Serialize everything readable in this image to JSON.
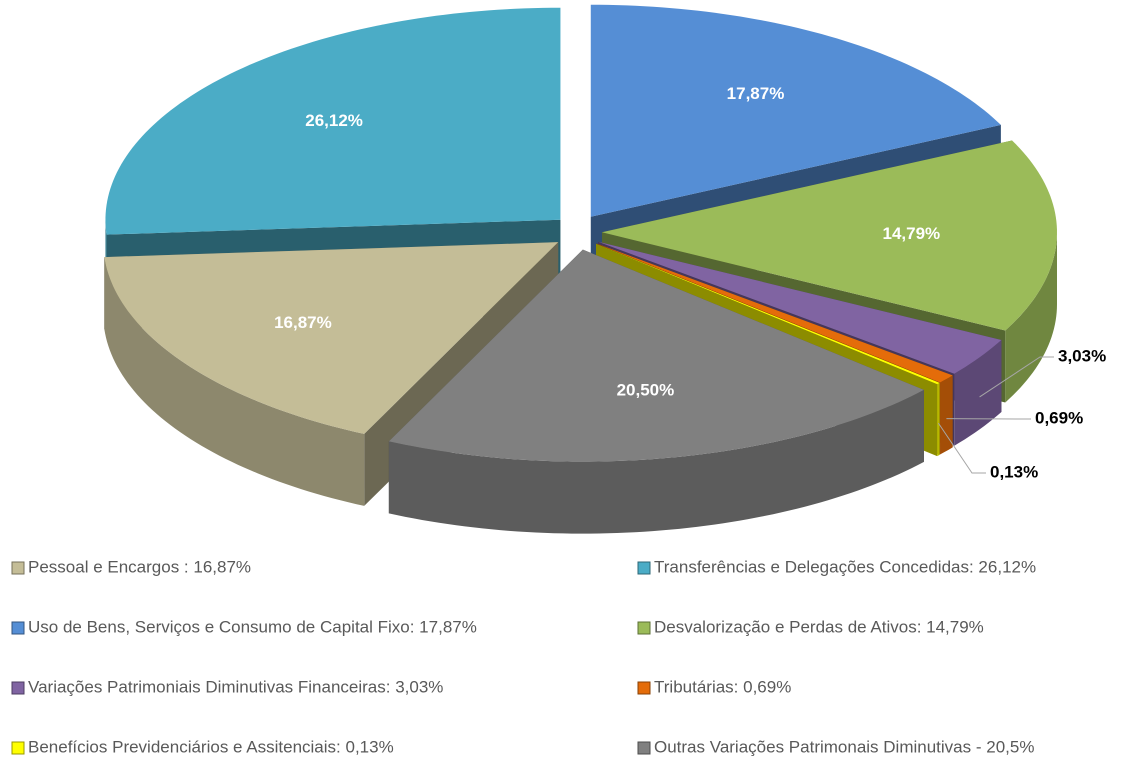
{
  "chart_data": {
    "type": "pie",
    "categories": [
      "Pessoal e Encargos : 16,87%",
      "Transferências e Delegações Concedidas: 26,12%",
      "Uso de Bens, Serviços e Consumo de Capital Fixo: 17,87%",
      "Desvalorização e Perdas de Ativos: 14,79%",
      "Variações Patrimoniais Diminutivas Financeiras: 3,03%",
      "Tributárias: 0,69%",
      "Benefícios Previdenciários e Assitenciais: 0,13%",
      "Outras Variações Patrimonais Diminutivas - 20,5%"
    ],
    "values": [
      16.87,
      26.12,
      17.87,
      14.79,
      3.03,
      0.69,
      0.13,
      20.5
    ],
    "value_labels": [
      "16,87%",
      "26,12%",
      "17,87%",
      "14,79%",
      "3,03%",
      "0,69%",
      "0,13%",
      "20,50%"
    ],
    "colors": [
      "#c4bd97",
      "#4bacc6",
      "#558ed5",
      "#9bbb59",
      "#8064a2",
      "#e46c0a",
      "#ffff00",
      "#808080"
    ]
  }
}
